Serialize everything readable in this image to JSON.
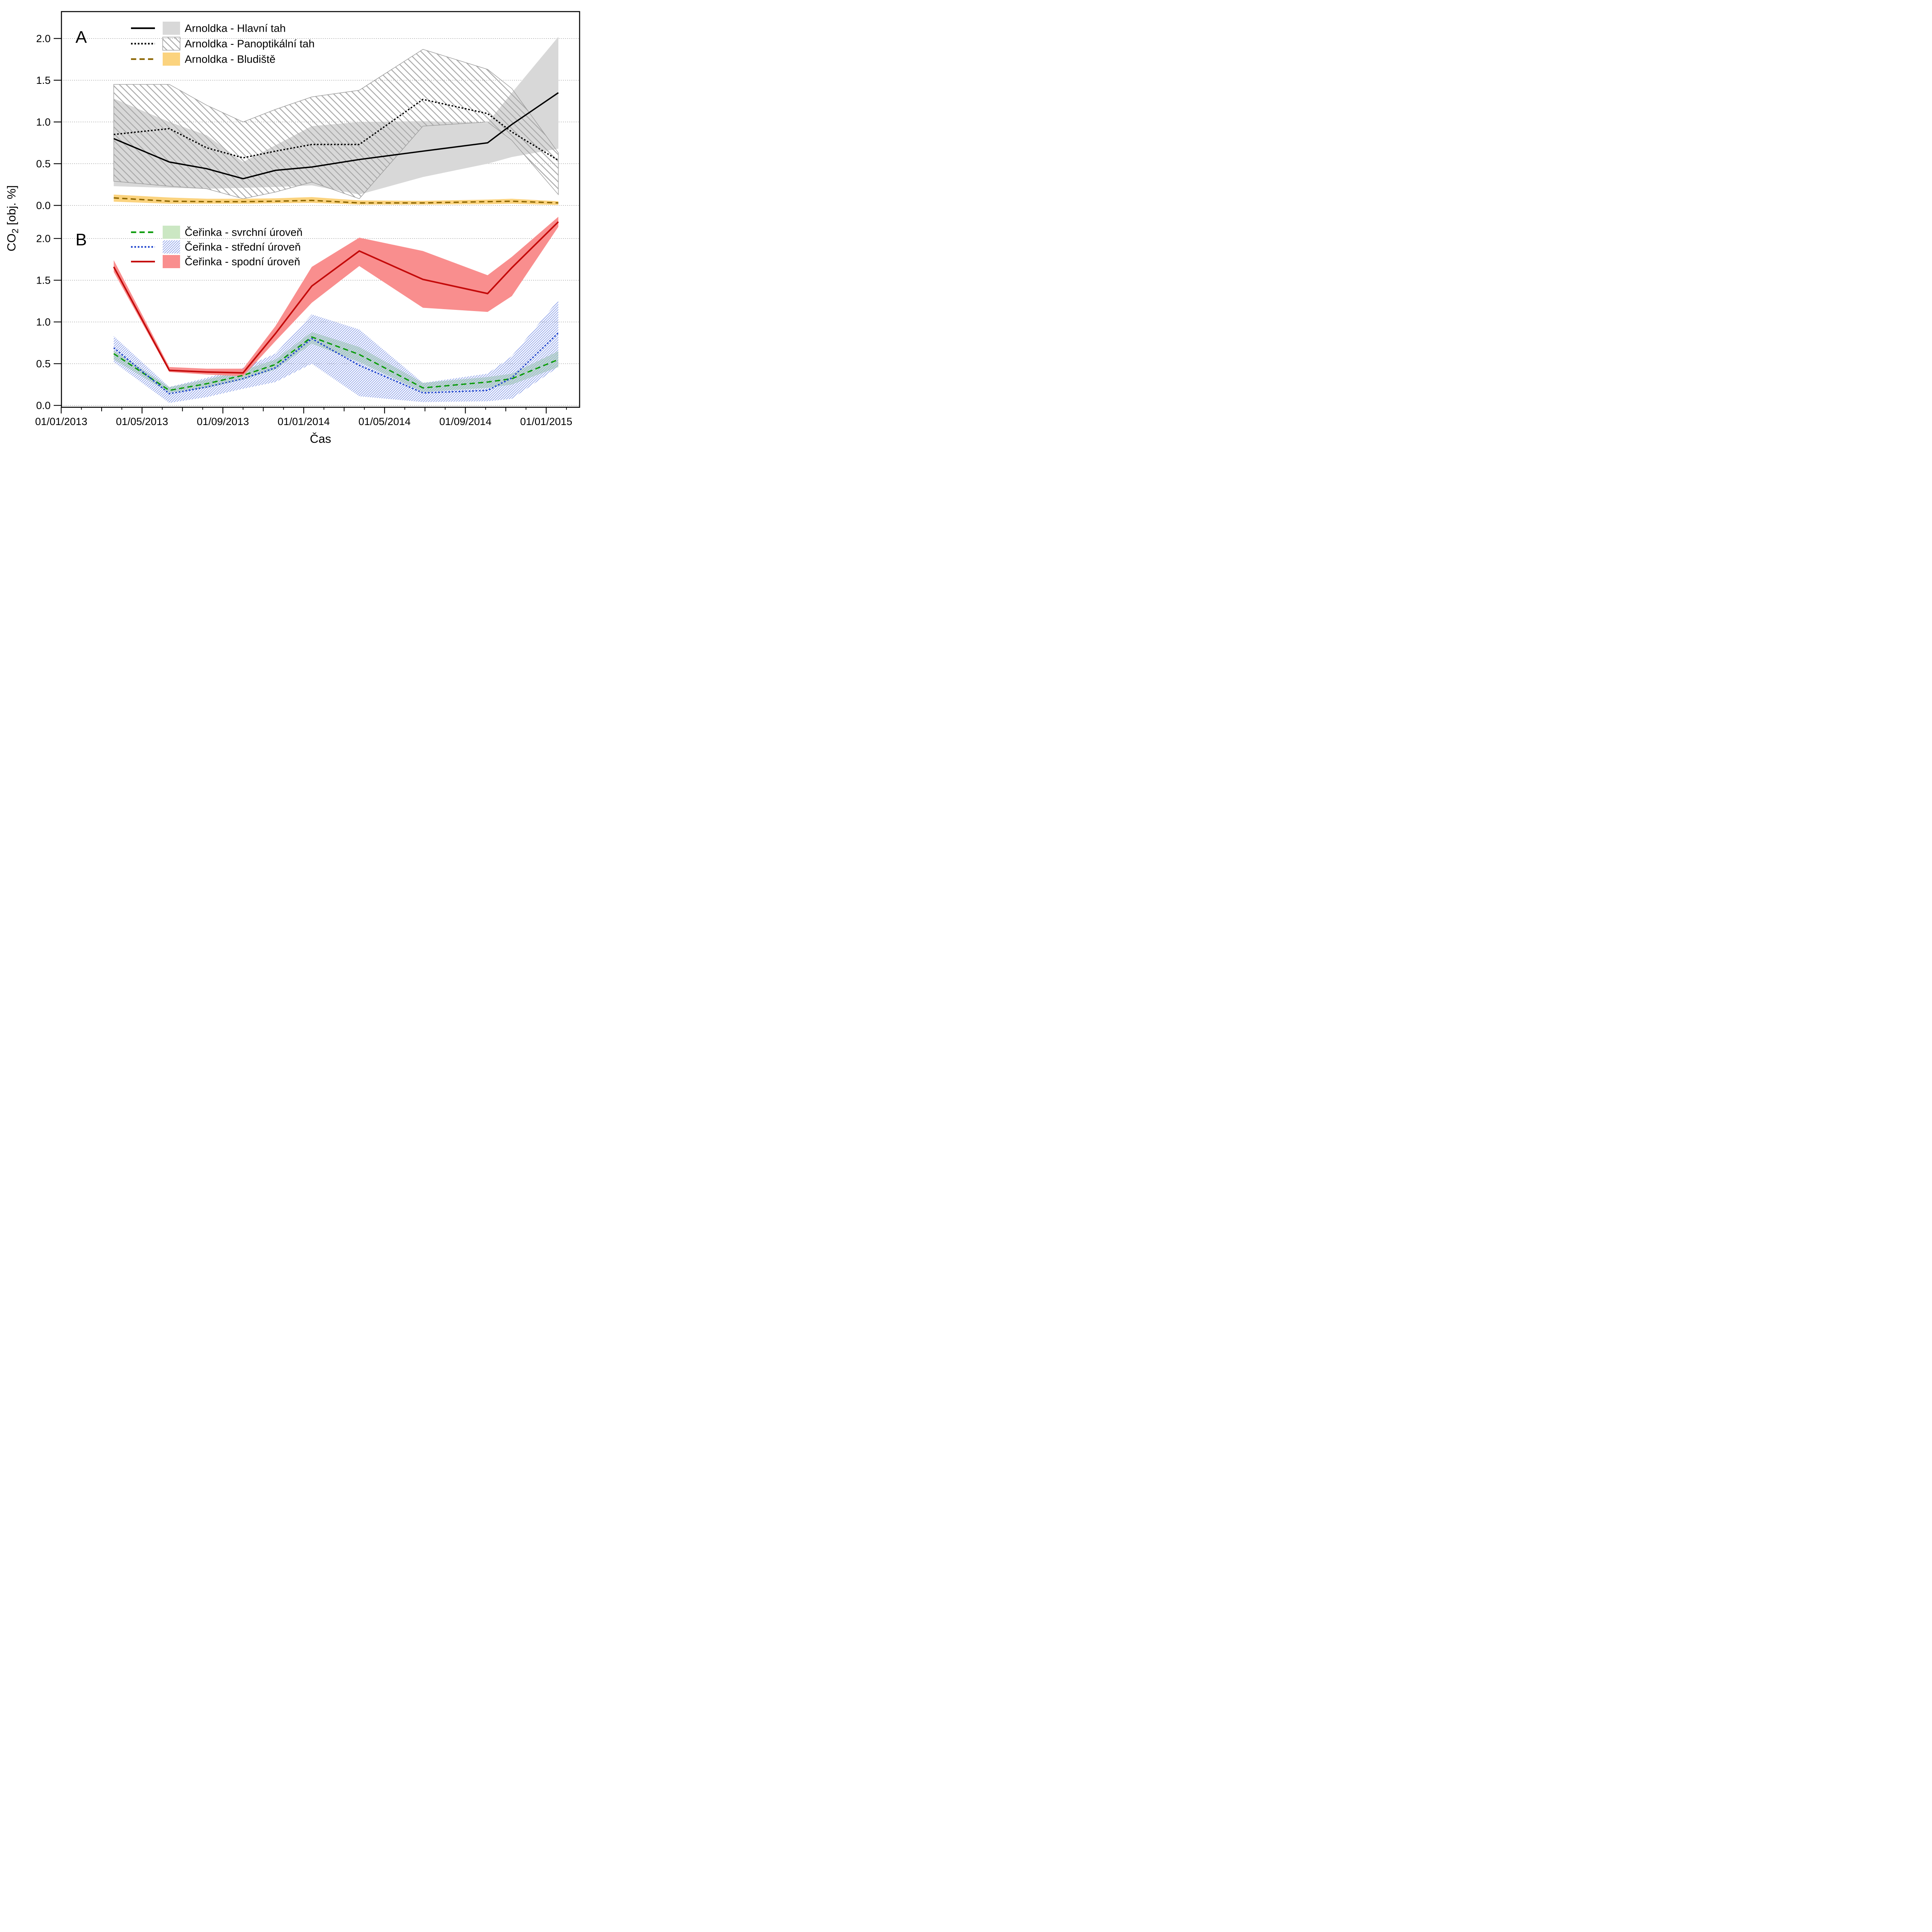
{
  "page": {
    "background": "#ffffff"
  },
  "x_axis": {
    "label": "Čas",
    "tick_labels": [
      "01/01/2013",
      "01/05/2013",
      "01/09/2013",
      "01/01/2014",
      "01/05/2014",
      "01/09/2014",
      "01/01/2015"
    ],
    "tick_months": [
      0,
      4,
      8,
      12,
      16,
      20,
      24
    ]
  },
  "y_axis": {
    "label_pre": "CO",
    "label_sub": "2",
    "label_post": "  [obj. %]"
  },
  "chart_data": [
    {
      "type": "line",
      "panel": "A",
      "ylabel": "CO2 [obj. %]",
      "ylim": [
        -0.05,
        2.32
      ],
      "yticks": [
        "0.0",
        "0.5",
        "1.0",
        "1.5",
        "2.0"
      ],
      "ytick_values": [
        0,
        0.5,
        1.0,
        1.5,
        2.0
      ],
      "grid": "dotted horizontal",
      "x_months": [
        2.6,
        5.35,
        7.2,
        9.0,
        10.6,
        12.4,
        14.75,
        17.9,
        21.1,
        22.3,
        24.6
      ],
      "series": [
        {
          "name": "Arnoldka - Hlavní tah",
          "line": "solid",
          "color": "#000000",
          "band_style": "fill",
          "band_color": "#d8d8d8",
          "band_outline": null,
          "values": [
            0.8,
            0.52,
            0.44,
            0.32,
            0.42,
            0.46,
            0.55,
            0.65,
            0.75,
            0.97,
            1.35
          ],
          "band_low": [
            0.23,
            0.21,
            0.2,
            0.21,
            0.22,
            0.24,
            0.13,
            0.34,
            0.5,
            0.58,
            0.68
          ],
          "band_high": [
            1.28,
            1.0,
            0.84,
            0.52,
            0.72,
            0.95,
            1.0,
            1.01,
            0.99,
            1.35,
            2.02
          ]
        },
        {
          "name": "Arnoldka - Panoptikální tah",
          "line": "dotted",
          "color": "#000000",
          "band_style": "hatch-backslash",
          "band_color": "#a9a9a9",
          "band_outline": "#9a9a9a",
          "values": [
            0.85,
            0.92,
            0.69,
            0.57,
            0.65,
            0.73,
            0.73,
            1.27,
            1.1,
            0.88,
            0.54
          ],
          "band_low": [
            0.29,
            0.23,
            0.2,
            0.08,
            0.16,
            0.28,
            0.08,
            0.95,
            1.0,
            0.78,
            0.13
          ],
          "band_high": [
            1.45,
            1.45,
            1.2,
            1.0,
            1.15,
            1.3,
            1.38,
            1.87,
            1.63,
            1.4,
            0.63
          ]
        },
        {
          "name": "Arnoldka - Bludiště",
          "line": "dash",
          "color": "#8A6400",
          "band_style": "fill",
          "band_color": "#FBD37E",
          "band_outline": null,
          "values": [
            0.09,
            0.05,
            0.045,
            0.045,
            0.05,
            0.06,
            0.03,
            0.03,
            0.045,
            0.05,
            0.03
          ],
          "band_low": [
            0.045,
            0.02,
            0.02,
            0.02,
            0.025,
            0.03,
            0.01,
            0.01,
            0.015,
            0.02,
            0.005
          ],
          "band_high": [
            0.13,
            0.095,
            0.08,
            0.08,
            0.085,
            0.1,
            0.06,
            0.055,
            0.07,
            0.08,
            0.05
          ]
        }
      ]
    },
    {
      "type": "line",
      "panel": "B",
      "ylabel": "CO2 [obj. %]",
      "ylim": [
        -0.02,
        2.3
      ],
      "yticks": [
        "0.0",
        "0.5",
        "1.0",
        "1.5",
        "2.0"
      ],
      "ytick_values": [
        0,
        0.5,
        1.0,
        1.5,
        2.0
      ],
      "grid": "dotted horizontal",
      "x_months": [
        2.6,
        5.35,
        7.2,
        9.0,
        10.6,
        12.4,
        14.75,
        17.9,
        21.1,
        22.3,
        24.6
      ],
      "series": [
        {
          "name": "Čeřinka - svrchní úroveň",
          "line": "dash",
          "color": "#0B9B0B",
          "band_style": "fill",
          "band_color": "#CBE7C3",
          "band_outline": null,
          "values": [
            0.62,
            0.18,
            0.26,
            0.36,
            0.49,
            0.82,
            0.61,
            0.21,
            0.28,
            0.32,
            0.55
          ],
          "band_low": [
            0.55,
            0.15,
            0.21,
            0.31,
            0.43,
            0.74,
            0.52,
            0.16,
            0.21,
            0.25,
            0.46
          ],
          "band_high": [
            0.66,
            0.22,
            0.31,
            0.42,
            0.55,
            0.88,
            0.7,
            0.27,
            0.34,
            0.38,
            0.65
          ]
        },
        {
          "name": "Čeřinka - střední úroveň",
          "line": "dotted",
          "color": "#1C42CC",
          "band_style": "hatch-slash",
          "band_color": "#8CA0E8",
          "band_outline": null,
          "values": [
            0.69,
            0.14,
            0.22,
            0.32,
            0.45,
            0.8,
            0.48,
            0.15,
            0.18,
            0.33,
            0.87
          ],
          "band_low": [
            0.52,
            0.03,
            0.1,
            0.2,
            0.28,
            0.5,
            0.11,
            0.04,
            0.05,
            0.08,
            0.46
          ],
          "band_high": [
            0.83,
            0.22,
            0.33,
            0.45,
            0.62,
            1.09,
            0.91,
            0.27,
            0.38,
            0.59,
            1.26
          ]
        },
        {
          "name": "Čeřinka - spodní úroveň",
          "line": "solid",
          "color": "#C40A0A",
          "band_style": "fill",
          "band_color": "#F98E8E",
          "band_outline": null,
          "values": [
            1.66,
            0.42,
            0.4,
            0.39,
            0.86,
            1.43,
            1.85,
            1.51,
            1.34,
            1.65,
            2.2
          ],
          "band_low": [
            1.6,
            0.4,
            0.37,
            0.35,
            0.77,
            1.23,
            1.67,
            1.17,
            1.12,
            1.31,
            2.14
          ],
          "band_high": [
            1.74,
            0.46,
            0.44,
            0.44,
            0.95,
            1.66,
            2.01,
            1.85,
            1.56,
            1.78,
            2.26
          ]
        }
      ]
    }
  ]
}
